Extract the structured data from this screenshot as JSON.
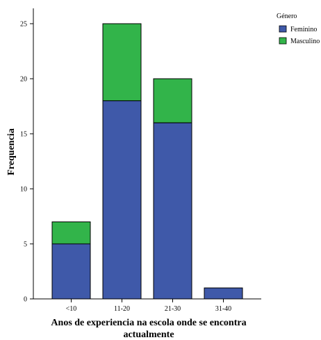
{
  "chart_data": {
    "type": "bar",
    "stacked": true,
    "categories": [
      "<10",
      "11-20",
      "21-30",
      "31-40"
    ],
    "series": [
      {
        "name": "Feminino",
        "values": [
          5,
          18,
          16,
          1
        ],
        "color": "#3f59a9"
      },
      {
        "name": "Masculino",
        "values": [
          2,
          7,
          4,
          0
        ],
        "color": "#32b44a"
      }
    ],
    "xlabel_line1": "Anos de experiencia na escola onde se encontra",
    "xlabel_line2": "actualmente",
    "ylabel": "Frequencia",
    "ylim": [
      0,
      28
    ],
    "yticks": [
      0,
      5,
      10,
      15,
      20,
      25
    ],
    "grid": false,
    "legend": {
      "title": "Género",
      "placement": "top-right"
    }
  }
}
